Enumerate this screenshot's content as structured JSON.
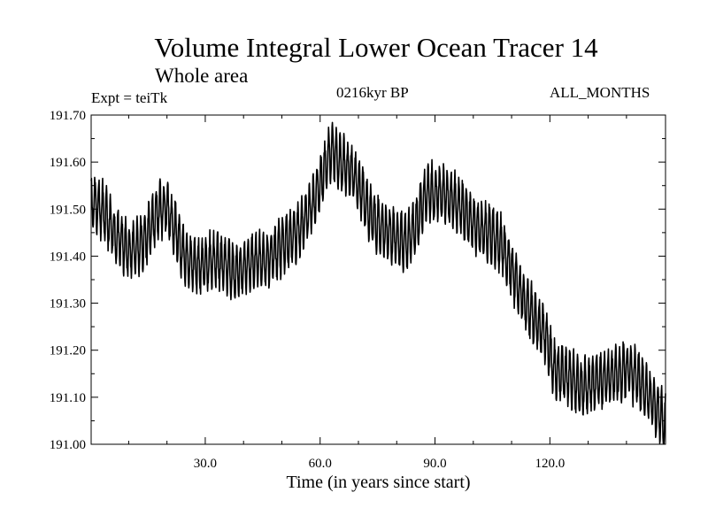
{
  "chart_data": {
    "type": "line",
    "title": "Volume Integral Lower Ocean Tracer 14",
    "subtitle": "Whole area",
    "expt_label": "Expt = teiTk",
    "period_label": "0216kyr BP",
    "months_label": "ALL_MONTHS",
    "xlabel": "Time (in years since start)",
    "ylabel": "",
    "xlim": [
      0.2,
      150.2
    ],
    "ylim": [
      191.0,
      191.7
    ],
    "xticks": [
      30,
      60,
      90,
      120
    ],
    "xtick_labels": [
      "30.0",
      "60.0",
      "90.0",
      "120.0"
    ],
    "yticks": [
      191.0,
      191.1,
      191.2,
      191.3,
      191.4,
      191.5,
      191.6,
      191.7
    ],
    "ytick_labels": [
      "191.00",
      "191.10",
      "191.20",
      "191.30",
      "191.40",
      "191.50",
      "191.60",
      "191.70"
    ],
    "line_color": "#000000",
    "series": [
      {
        "name": "Volume Integral Lower Ocean Tracer 14",
        "seasonal_amplitude": 0.055,
        "points_per_year": 12,
        "trend": [
          [
            0.2,
            191.52
          ],
          [
            3,
            191.5
          ],
          [
            6,
            191.45
          ],
          [
            10,
            191.41
          ],
          [
            14,
            191.43
          ],
          [
            18,
            191.5
          ],
          [
            20,
            191.5
          ],
          [
            22,
            191.46
          ],
          [
            25,
            191.39
          ],
          [
            28,
            191.38
          ],
          [
            33,
            191.39
          ],
          [
            36,
            191.38
          ],
          [
            38,
            191.36
          ],
          [
            42,
            191.39
          ],
          [
            46,
            191.39
          ],
          [
            50,
            191.42
          ],
          [
            54,
            191.45
          ],
          [
            58,
            191.51
          ],
          [
            61,
            191.58
          ],
          [
            63,
            191.63
          ],
          [
            65,
            191.6
          ],
          [
            68,
            191.58
          ],
          [
            70,
            191.55
          ],
          [
            73,
            191.49
          ],
          [
            76,
            191.46
          ],
          [
            80,
            191.44
          ],
          [
            83,
            191.43
          ],
          [
            86,
            191.49
          ],
          [
            88,
            191.54
          ],
          [
            92,
            191.53
          ],
          [
            95,
            191.52
          ],
          [
            98,
            191.49
          ],
          [
            101,
            191.46
          ],
          [
            104,
            191.45
          ],
          [
            107,
            191.43
          ],
          [
            110,
            191.37
          ],
          [
            113,
            191.31
          ],
          [
            116,
            191.27
          ],
          [
            119,
            191.23
          ],
          [
            121,
            191.16
          ],
          [
            124,
            191.15
          ],
          [
            128,
            191.12
          ],
          [
            131,
            191.13
          ],
          [
            135,
            191.14
          ],
          [
            140,
            191.16
          ],
          [
            143,
            191.14
          ],
          [
            146,
            191.1
          ],
          [
            148,
            191.07
          ],
          [
            150.2,
            191.05
          ]
        ]
      }
    ]
  }
}
